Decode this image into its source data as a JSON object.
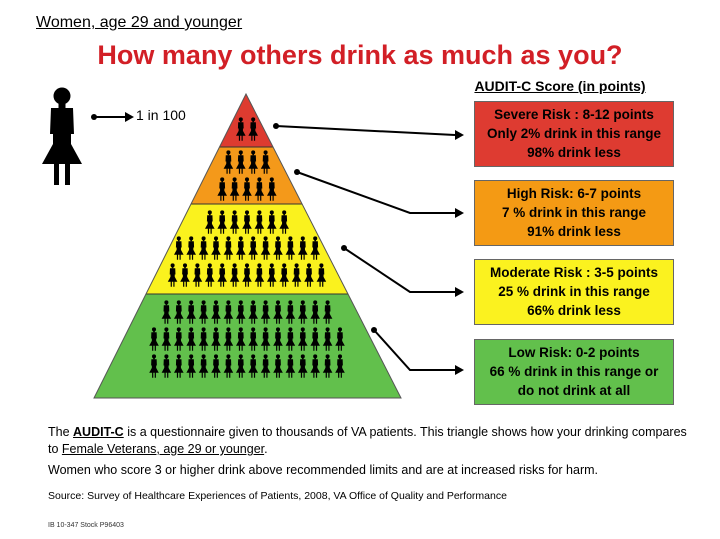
{
  "header": {
    "subtitle": "Women, age 29 and younger",
    "title": "How many others drink as much as you?",
    "score_header": "AUDIT-C Score (in points)"
  },
  "legend": {
    "icon": "woman-figure-icon",
    "label": "1 in 100"
  },
  "pyramid": {
    "colors": [
      "#dd3b30",
      "#f4991a",
      "#faf21e",
      "#62c04c"
    ],
    "figure_rows": [
      2,
      4,
      5,
      7,
      12,
      13,
      14,
      16,
      16
    ]
  },
  "boxes": [
    {
      "line1": "Severe Risk : 8-12 points",
      "line2": "Only  2% drink in this range",
      "line3": "98% drink less",
      "color": "#de3b31"
    },
    {
      "line1": "High Risk:  6-7 points",
      "line2": "7 % drink in this range",
      "line3": "91% drink less",
      "color": "#f49a14"
    },
    {
      "line1": "Moderate Risk : 3-5 points",
      "line2": "25 % drink in this range",
      "line3": "66% drink less",
      "color": "#fbf21f"
    },
    {
      "line1": "Low Risk:  0-2 points",
      "line2": "66 % drink in this range or",
      "line3": "do not drink at all",
      "color": "#62c04c"
    }
  ],
  "footer": {
    "p1_a": "The ",
    "p1_acronym": "AUDIT-C",
    "p1_b": " is a questionnaire given to thousands of VA patients. This triangle shows how your drinking compares to ",
    "p1_link": "Female Veterans, age 29 or younger",
    "p1_c": ".",
    "p2": "Women who score 3 or higher drink above recommended limits and are at increased risks for harm.",
    "source": "Source: Survey of Healthcare Experiences of Patients, 2008, VA Office of Quality and Performance",
    "code": "IB 10-347   Stock P96403"
  }
}
